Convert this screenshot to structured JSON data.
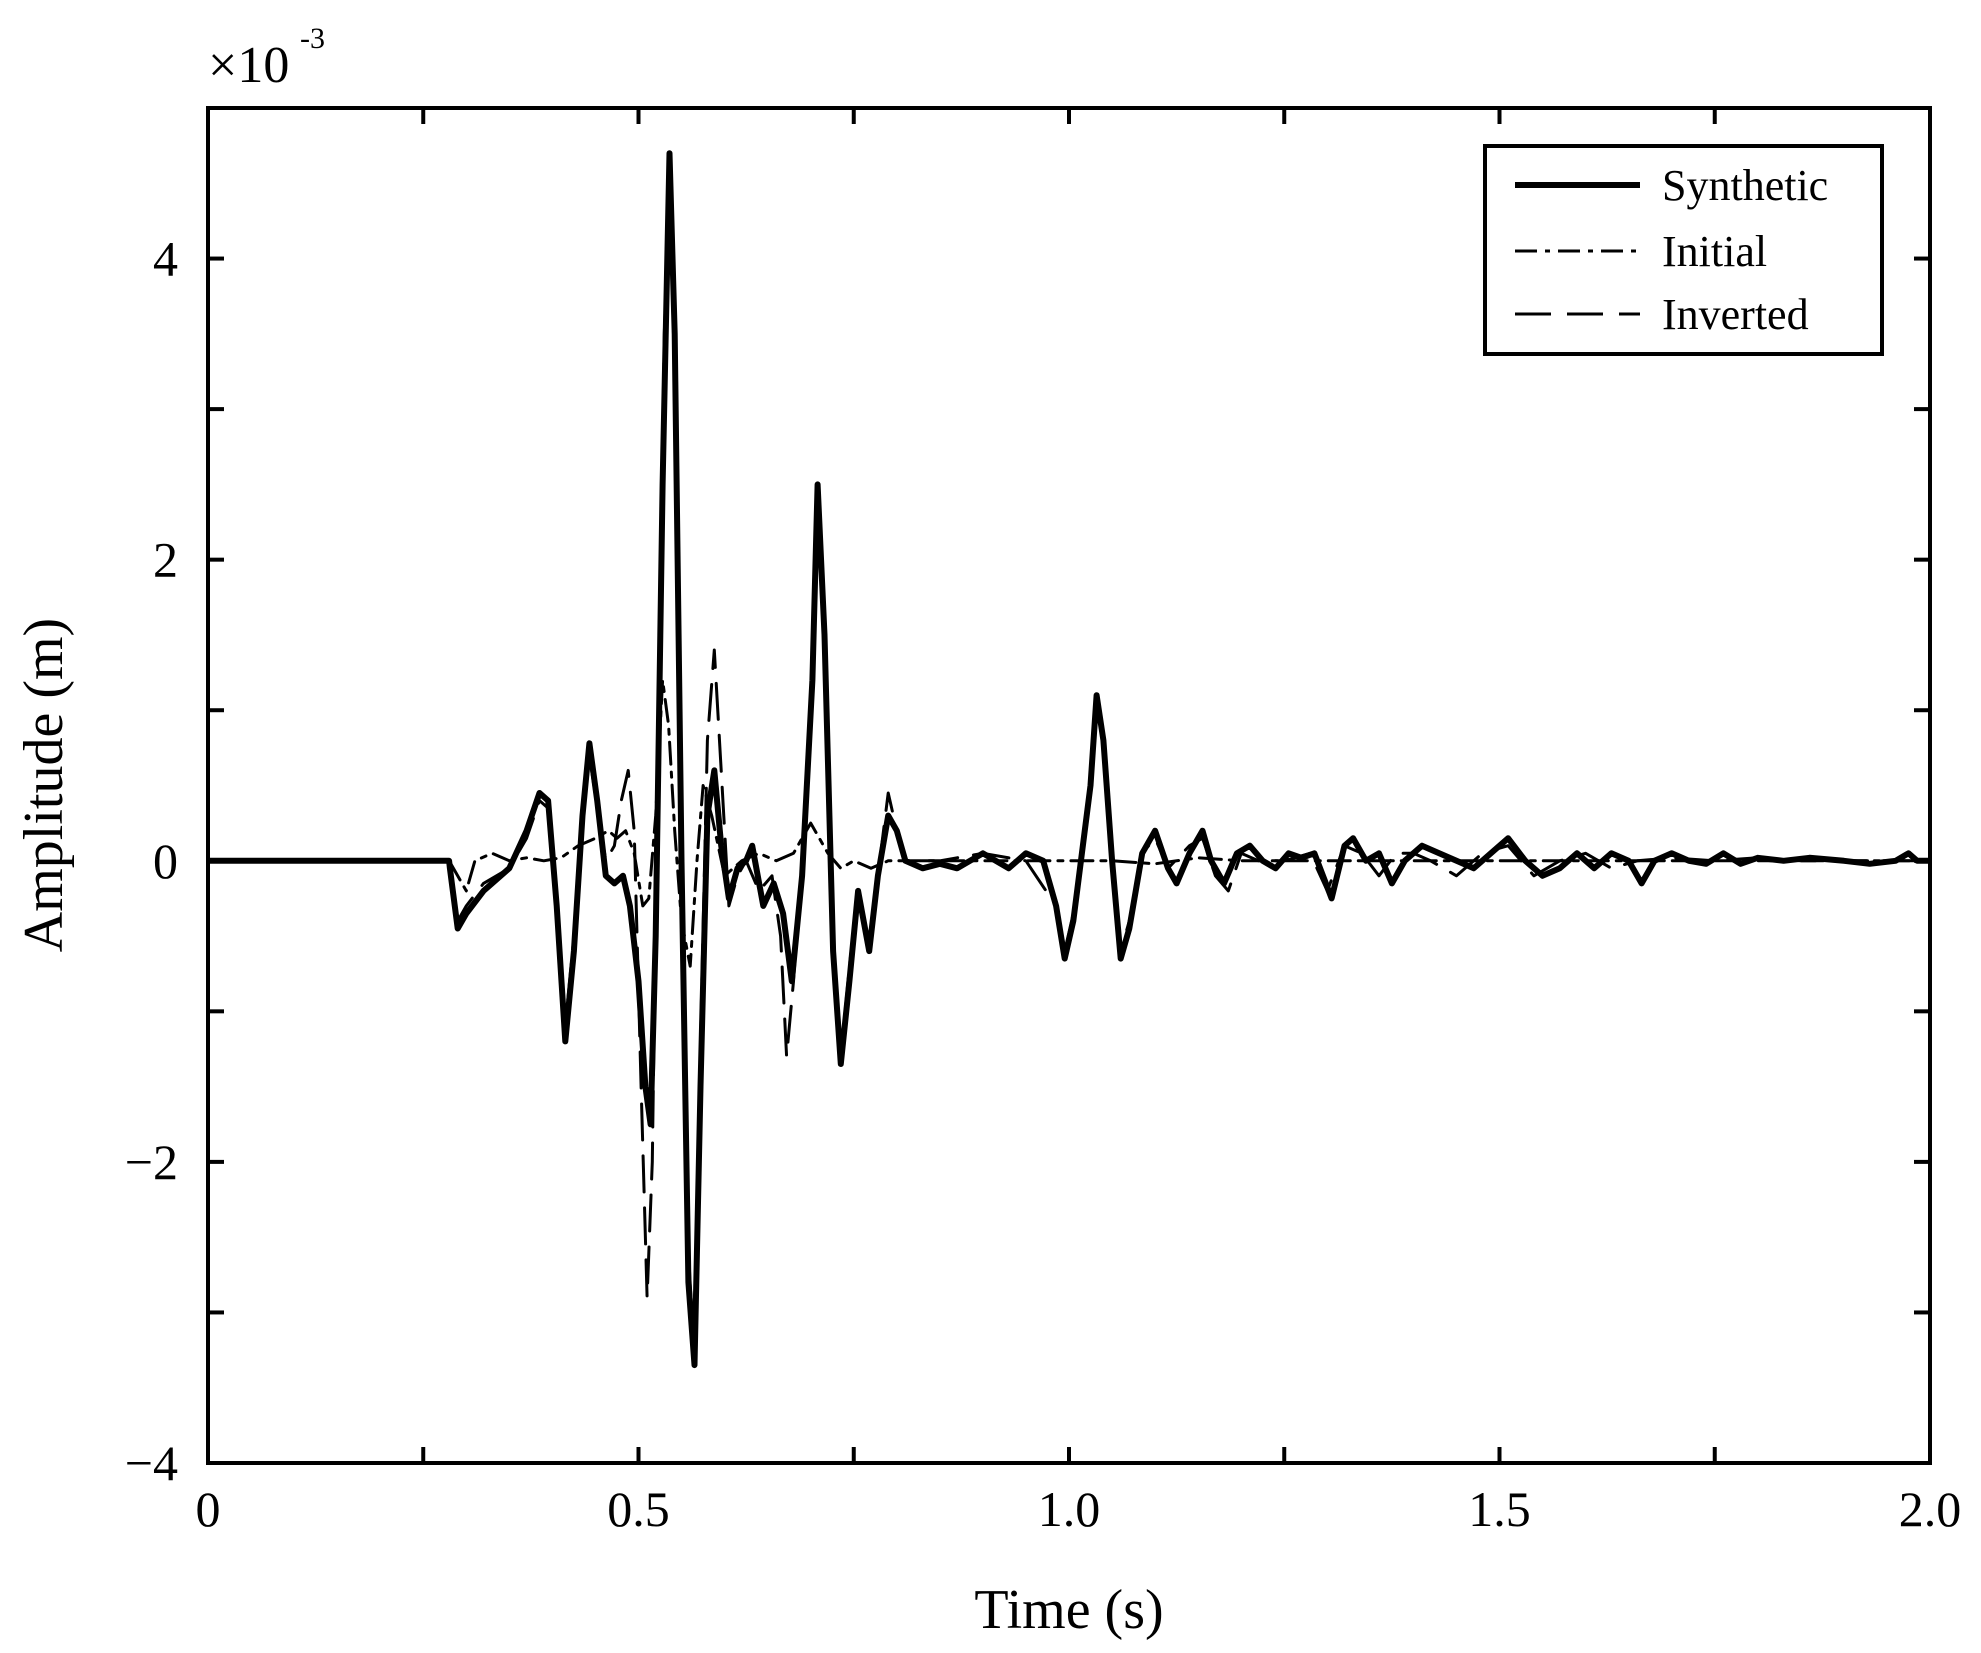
{
  "chart_data": {
    "type": "line",
    "xlabel": "Time (s)",
    "ylabel": "Amplitude (m)",
    "y_multiplier": {
      "base": "×10",
      "exponent": "-3"
    },
    "xlim": [
      0,
      2.0
    ],
    "ylim": [
      -4,
      5
    ],
    "x_ticks": [
      0,
      0.25,
      0.5,
      0.75,
      1.0,
      1.25,
      1.5,
      1.75,
      2.0
    ],
    "x_tick_labels": [
      {
        "value": 0,
        "label": "0"
      },
      {
        "value": 0.5,
        "label": "0.5"
      },
      {
        "value": 1.0,
        "label": "1.0"
      },
      {
        "value": 1.5,
        "label": "1.5"
      },
      {
        "value": 2.0,
        "label": "2.0"
      }
    ],
    "y_ticks": [
      -4,
      -3,
      -2,
      -1,
      0,
      1,
      2,
      3,
      4
    ],
    "y_tick_labels": [
      {
        "value": -4,
        "label": "−4"
      },
      {
        "value": -2,
        "label": "−2"
      },
      {
        "value": 0,
        "label": "0"
      },
      {
        "value": 2,
        "label": "2"
      },
      {
        "value": 4,
        "label": "4"
      }
    ],
    "grid": false,
    "legend_position": "top-right",
    "series": [
      {
        "name": "Synthetic",
        "style": "solid-thick",
        "points": [
          [
            0,
            0
          ],
          [
            0.28,
            0
          ],
          [
            0.281,
            -0.05
          ],
          [
            0.29,
            -0.45
          ],
          [
            0.3,
            -0.35
          ],
          [
            0.32,
            -0.2
          ],
          [
            0.35,
            -0.05
          ],
          [
            0.37,
            0.2
          ],
          [
            0.385,
            0.45
          ],
          [
            0.395,
            0.4
          ],
          [
            0.405,
            -0.3
          ],
          [
            0.415,
            -1.2
          ],
          [
            0.425,
            -0.6
          ],
          [
            0.435,
            0.3
          ],
          [
            0.443,
            0.78
          ],
          [
            0.452,
            0.4
          ],
          [
            0.462,
            -0.1
          ],
          [
            0.472,
            -0.15
          ],
          [
            0.482,
            -0.1
          ],
          [
            0.49,
            -0.3
          ],
          [
            0.5,
            -0.8
          ],
          [
            0.508,
            -1.5
          ],
          [
            0.514,
            -1.75
          ],
          [
            0.52,
            -0.5
          ],
          [
            0.528,
            2.5
          ],
          [
            0.536,
            4.7
          ],
          [
            0.542,
            3.5
          ],
          [
            0.55,
            0.0
          ],
          [
            0.558,
            -2.8
          ],
          [
            0.565,
            -3.35
          ],
          [
            0.572,
            -1.5
          ],
          [
            0.58,
            0.3
          ],
          [
            0.588,
            0.6
          ],
          [
            0.596,
            0.1
          ],
          [
            0.605,
            -0.25
          ],
          [
            0.615,
            -0.05
          ],
          [
            0.625,
            0.0
          ],
          [
            0.632,
            0.1
          ],
          [
            0.645,
            -0.3
          ],
          [
            0.657,
            -0.15
          ],
          [
            0.668,
            -0.35
          ],
          [
            0.678,
            -0.8
          ],
          [
            0.69,
            -0.1
          ],
          [
            0.702,
            1.2
          ],
          [
            0.708,
            2.5
          ],
          [
            0.716,
            1.5
          ],
          [
            0.726,
            -0.6
          ],
          [
            0.735,
            -1.35
          ],
          [
            0.745,
            -0.8
          ],
          [
            0.755,
            -0.2
          ],
          [
            0.768,
            -0.6
          ],
          [
            0.778,
            -0.1
          ],
          [
            0.79,
            0.3
          ],
          [
            0.8,
            0.2
          ],
          [
            0.81,
            0.0
          ],
          [
            0.83,
            -0.05
          ],
          [
            0.85,
            -0.02
          ],
          [
            0.87,
            -0.05
          ],
          [
            0.9,
            0.05
          ],
          [
            0.93,
            -0.05
          ],
          [
            0.95,
            0.05
          ],
          [
            0.97,
            0.0
          ],
          [
            0.985,
            -0.3
          ],
          [
            0.995,
            -0.65
          ],
          [
            1.005,
            -0.4
          ],
          [
            1.015,
            0.05
          ],
          [
            1.025,
            0.5
          ],
          [
            1.032,
            1.1
          ],
          [
            1.04,
            0.8
          ],
          [
            1.05,
            0.0
          ],
          [
            1.06,
            -0.65
          ],
          [
            1.07,
            -0.45
          ],
          [
            1.085,
            0.05
          ],
          [
            1.1,
            0.2
          ],
          [
            1.115,
            -0.05
          ],
          [
            1.125,
            -0.15
          ],
          [
            1.14,
            0.05
          ],
          [
            1.155,
            0.2
          ],
          [
            1.165,
            0.0
          ],
          [
            1.18,
            -0.15
          ],
          [
            1.195,
            0.05
          ],
          [
            1.21,
            0.1
          ],
          [
            1.225,
            0.0
          ],
          [
            1.24,
            -0.05
          ],
          [
            1.255,
            0.05
          ],
          [
            1.27,
            0.02
          ],
          [
            1.285,
            0.05
          ],
          [
            1.295,
            -0.1
          ],
          [
            1.305,
            -0.25
          ],
          [
            1.32,
            0.1
          ],
          [
            1.33,
            0.15
          ],
          [
            1.345,
            0.0
          ],
          [
            1.36,
            0.05
          ],
          [
            1.375,
            -0.15
          ],
          [
            1.39,
            0.0
          ],
          [
            1.41,
            0.1
          ],
          [
            1.43,
            0.05
          ],
          [
            1.45,
            0.0
          ],
          [
            1.47,
            -0.05
          ],
          [
            1.49,
            0.05
          ],
          [
            1.51,
            0.15
          ],
          [
            1.53,
            0.0
          ],
          [
            1.55,
            -0.1
          ],
          [
            1.57,
            -0.05
          ],
          [
            1.59,
            0.05
          ],
          [
            1.61,
            -0.05
          ],
          [
            1.63,
            0.05
          ],
          [
            1.65,
            0.0
          ],
          [
            1.665,
            -0.15
          ],
          [
            1.68,
            0.0
          ],
          [
            1.7,
            0.05
          ],
          [
            1.72,
            0.0
          ],
          [
            1.74,
            -0.02
          ],
          [
            1.76,
            0.05
          ],
          [
            1.78,
            -0.02
          ],
          [
            1.8,
            0.02
          ],
          [
            1.83,
            0.0
          ],
          [
            1.86,
            0.02
          ],
          [
            1.9,
            0.0
          ],
          [
            1.93,
            -0.02
          ],
          [
            1.96,
            0.0
          ],
          [
            1.975,
            0.05
          ],
          [
            1.985,
            0.0
          ],
          [
            2.0,
            0.0
          ]
        ]
      },
      {
        "name": "Initial",
        "style": "dash-dot",
        "points": [
          [
            0.28,
            0
          ],
          [
            0.3,
            -0.2
          ],
          [
            0.31,
            0.0
          ],
          [
            0.33,
            0.05
          ],
          [
            0.35,
            0.0
          ],
          [
            0.37,
            0.02
          ],
          [
            0.39,
            0.0
          ],
          [
            0.41,
            0.02
          ],
          [
            0.43,
            0.1
          ],
          [
            0.45,
            0.15
          ],
          [
            0.465,
            0.2
          ],
          [
            0.475,
            0.15
          ],
          [
            0.485,
            0.2
          ],
          [
            0.495,
            0.05
          ],
          [
            0.505,
            -0.3
          ],
          [
            0.512,
            -0.25
          ],
          [
            0.52,
            0.3
          ],
          [
            0.528,
            1.2
          ],
          [
            0.535,
            0.9
          ],
          [
            0.542,
            0.2
          ],
          [
            0.55,
            -0.4
          ],
          [
            0.56,
            -0.7
          ],
          [
            0.568,
            0.0
          ],
          [
            0.575,
            0.5
          ],
          [
            0.585,
            0.3
          ],
          [
            0.6,
            -0.1
          ],
          [
            0.62,
            0.0
          ],
          [
            0.64,
            0.05
          ],
          [
            0.66,
            0.0
          ],
          [
            0.68,
            0.05
          ],
          [
            0.7,
            0.25
          ],
          [
            0.71,
            0.15
          ],
          [
            0.72,
            0.05
          ],
          [
            0.735,
            -0.05
          ],
          [
            0.75,
            0.0
          ],
          [
            0.77,
            -0.05
          ],
          [
            0.79,
            0.0
          ],
          [
            0.82,
            0.0
          ],
          [
            0.86,
            0.0
          ],
          [
            0.9,
            0.0
          ],
          [
            0.95,
            0.0
          ],
          [
            1.0,
            0.0
          ],
          [
            1.05,
            0.0
          ],
          [
            1.1,
            -0.02
          ],
          [
            1.15,
            0.02
          ],
          [
            1.2,
            0.0
          ],
          [
            1.3,
            0.0
          ],
          [
            1.4,
            0.0
          ],
          [
            1.5,
            0.0
          ],
          [
            1.6,
            0.0
          ],
          [
            1.7,
            0.0
          ],
          [
            1.8,
            0.0
          ],
          [
            1.9,
            0.0
          ],
          [
            2.0,
            0.0
          ]
        ]
      },
      {
        "name": "Inverted",
        "style": "dashed",
        "points": [
          [
            0.28,
            0
          ],
          [
            0.281,
            -0.05
          ],
          [
            0.29,
            -0.4
          ],
          [
            0.3,
            -0.3
          ],
          [
            0.32,
            -0.15
          ],
          [
            0.35,
            -0.05
          ],
          [
            0.37,
            0.15
          ],
          [
            0.385,
            0.4
          ],
          [
            0.395,
            0.35
          ],
          [
            0.405,
            -0.25
          ],
          [
            0.415,
            -1.1
          ],
          [
            0.425,
            -0.5
          ],
          [
            0.435,
            0.3
          ],
          [
            0.443,
            0.7
          ],
          [
            0.452,
            0.35
          ],
          [
            0.462,
            0.0
          ],
          [
            0.472,
            0.1
          ],
          [
            0.48,
            0.4
          ],
          [
            0.488,
            0.6
          ],
          [
            0.495,
            0.2
          ],
          [
            0.503,
            -1.5
          ],
          [
            0.51,
            -2.9
          ],
          [
            0.516,
            -2.0
          ],
          [
            0.522,
            0.5
          ],
          [
            0.53,
            3.5
          ],
          [
            0.536,
            4.5
          ],
          [
            0.543,
            3.0
          ],
          [
            0.55,
            0.0
          ],
          [
            0.558,
            -2.6
          ],
          [
            0.565,
            -3.3
          ],
          [
            0.572,
            -1.2
          ],
          [
            0.58,
            0.8
          ],
          [
            0.588,
            1.4
          ],
          [
            0.596,
            0.6
          ],
          [
            0.605,
            -0.3
          ],
          [
            0.615,
            -0.1
          ],
          [
            0.625,
            0.0
          ],
          [
            0.64,
            -0.2
          ],
          [
            0.655,
            -0.1
          ],
          [
            0.665,
            -0.5
          ],
          [
            0.672,
            -1.3
          ],
          [
            0.68,
            -0.8
          ],
          [
            0.69,
            0.0
          ],
          [
            0.702,
            1.3
          ],
          [
            0.708,
            2.4
          ],
          [
            0.716,
            1.4
          ],
          [
            0.726,
            -0.5
          ],
          [
            0.735,
            -1.3
          ],
          [
            0.745,
            -0.7
          ],
          [
            0.755,
            -0.2
          ],
          [
            0.768,
            -0.55
          ],
          [
            0.778,
            -0.1
          ],
          [
            0.79,
            0.45
          ],
          [
            0.8,
            0.2
          ],
          [
            0.81,
            0.0
          ],
          [
            0.85,
            0.0
          ],
          [
            0.9,
            0.05
          ],
          [
            0.95,
            0.0
          ],
          [
            0.985,
            -0.3
          ],
          [
            0.995,
            -0.6
          ],
          [
            1.005,
            -0.35
          ],
          [
            1.015,
            0.05
          ],
          [
            1.025,
            0.5
          ],
          [
            1.032,
            1.05
          ],
          [
            1.04,
            0.75
          ],
          [
            1.05,
            0.0
          ],
          [
            1.06,
            -0.6
          ],
          [
            1.07,
            -0.4
          ],
          [
            1.085,
            0.05
          ],
          [
            1.1,
            0.15
          ],
          [
            1.115,
            -0.05
          ],
          [
            1.14,
            0.1
          ],
          [
            1.155,
            0.15
          ],
          [
            1.17,
            -0.1
          ],
          [
            1.185,
            -0.2
          ],
          [
            1.2,
            0.05
          ],
          [
            1.22,
            0.0
          ],
          [
            1.25,
            0.0
          ],
          [
            1.28,
            0.05
          ],
          [
            1.3,
            -0.2
          ],
          [
            1.32,
            0.1
          ],
          [
            1.34,
            0.05
          ],
          [
            1.36,
            -0.1
          ],
          [
            1.38,
            0.05
          ],
          [
            1.4,
            0.05
          ],
          [
            1.42,
            0.0
          ],
          [
            1.45,
            -0.1
          ],
          [
            1.48,
            0.05
          ],
          [
            1.51,
            0.1
          ],
          [
            1.54,
            -0.1
          ],
          [
            1.57,
            0.0
          ],
          [
            1.6,
            0.05
          ],
          [
            1.63,
            -0.05
          ],
          [
            1.66,
            0.0
          ],
          [
            1.7,
            0.02
          ],
          [
            1.75,
            0.0
          ],
          [
            1.8,
            0.02
          ],
          [
            1.85,
            0.0
          ],
          [
            1.9,
            0.0
          ],
          [
            2.0,
            0.0
          ]
        ]
      }
    ]
  }
}
